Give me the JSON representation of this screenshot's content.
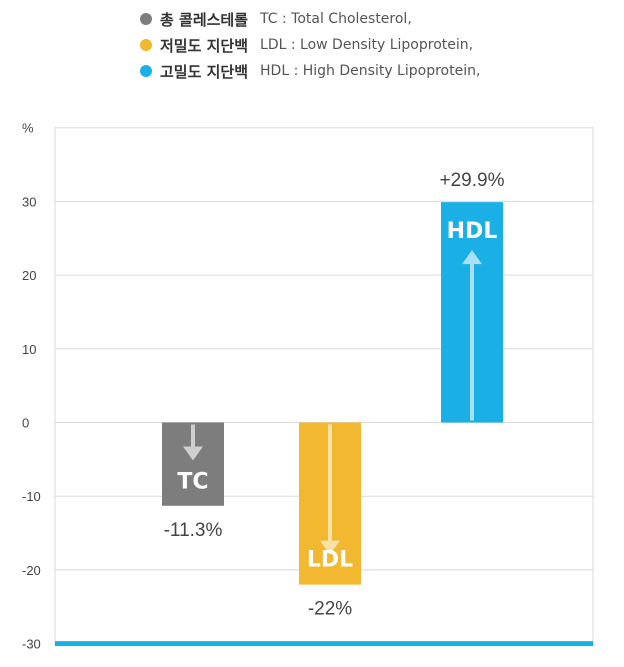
{
  "legend": [
    {
      "ko": "총 콜레스테롤",
      "en": "TC : Total Cholesterol,",
      "color": "#7d7d7d"
    },
    {
      "ko": "저밀도 지단백",
      "en": "LDL : Low Density Lipoprotein,",
      "color": "#f2b830"
    },
    {
      "ko": "고밀도 지단백",
      "en": "HDL : High Density Lipoprotein,",
      "color": "#1ab0e6"
    }
  ],
  "chart_data": {
    "type": "bar",
    "ylabel": "%",
    "ylim": [
      -30,
      40
    ],
    "yticks": [
      30,
      20,
      10,
      0,
      -10,
      -20,
      -30
    ],
    "grid": true,
    "categories": [
      "TC",
      "LDL",
      "HDL"
    ],
    "values": [
      -11.3,
      -22,
      29.9
    ],
    "labels": [
      "-11.3%",
      "-22%",
      "+29.9%"
    ],
    "colors": [
      "#7d7d7d",
      "#f2b830",
      "#1ab0e6"
    ],
    "arrow_colors": [
      "#cfcfcf",
      "#f7e3a8",
      "#a9e0f5"
    ],
    "baseline_color": "#1ab0e6"
  }
}
